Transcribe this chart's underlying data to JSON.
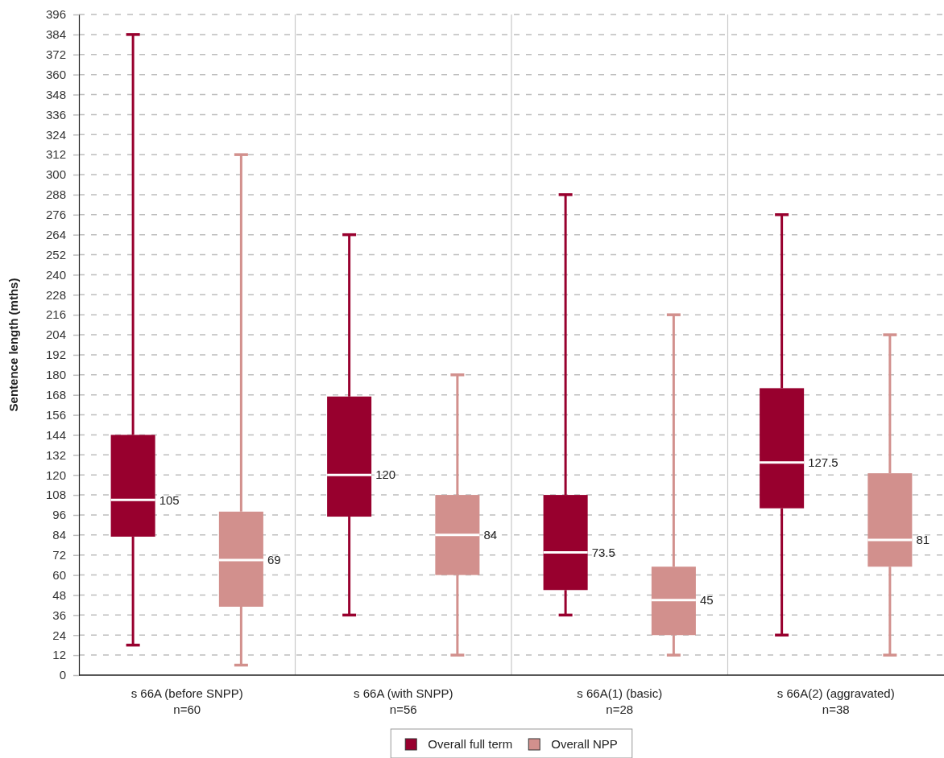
{
  "chart_data": {
    "type": "box",
    "ylabel": "Sentence length (mths)",
    "categories": [
      "s 66A (before SNPP)\nn=60",
      "s 66A (with SNPP)\nn=56",
      "s 66A(1) (basic)\nn=28",
      "s 66A(2) (aggravated)\nn=38"
    ],
    "series": [
      {
        "name": "Overall full term",
        "color": "#98002e",
        "boxes": [
          {
            "low": 18,
            "q1": 83,
            "median": 105,
            "q3": 144,
            "high": 384
          },
          {
            "low": 36,
            "q1": 95,
            "median": 120,
            "q3": 167,
            "high": 264
          },
          {
            "low": 36,
            "q1": 51,
            "median": 73.5,
            "q3": 108,
            "high": 288
          },
          {
            "low": 24,
            "q1": 100,
            "median": 127.5,
            "q3": 172,
            "high": 276
          }
        ],
        "value_labels": [
          "105",
          "120",
          "73.5",
          "127.5"
        ]
      },
      {
        "name": "Overall NPP",
        "color": "#d2908d",
        "boxes": [
          {
            "low": 6,
            "q1": 41,
            "median": 69,
            "q3": 98,
            "high": 312
          },
          {
            "low": 12,
            "q1": 60,
            "median": 84,
            "q3": 108,
            "high": 180
          },
          {
            "low": 12,
            "q1": 24,
            "median": 45,
            "q3": 65,
            "high": 216
          },
          {
            "low": 12,
            "q1": 65,
            "median": 81,
            "q3": 121,
            "high": 204
          }
        ],
        "value_labels": [
          "69",
          "84",
          "45",
          "81"
        ]
      }
    ],
    "ylim": [
      0,
      396
    ],
    "yticks": [
      0,
      12,
      24,
      36,
      48,
      60,
      72,
      84,
      96,
      108,
      120,
      132,
      144,
      156,
      168,
      180,
      192,
      204,
      216,
      228,
      240,
      252,
      264,
      276,
      288,
      300,
      312,
      324,
      336,
      348,
      360,
      372,
      384,
      396
    ],
    "grid": true,
    "legend": "bottom"
  }
}
